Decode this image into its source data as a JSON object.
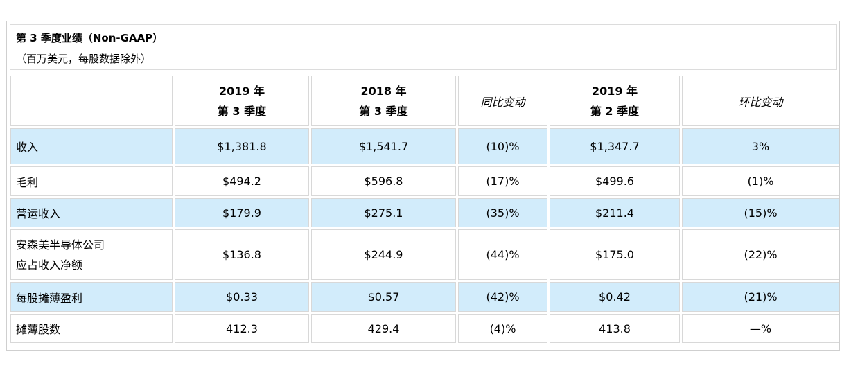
{
  "title": "第 3 季度业绩（Non-GAAP）",
  "subtitle": "（百万美元，每股数据除外）",
  "columns": [
    {
      "line1": "2019 年",
      "line2": "第 3 季度"
    },
    {
      "line1": "2018 年",
      "line2": "第 3 季度"
    },
    {
      "label": "同比变动"
    },
    {
      "line1": "2019 年",
      "line2": "第 2 季度"
    },
    {
      "label": "环比变动"
    }
  ],
  "rows": [
    {
      "label": "收入",
      "values": [
        "$1,381.8",
        "$1,541.7",
        "(10)%",
        "$1,347.7",
        "3%"
      ]
    },
    {
      "label": "毛利",
      "values": [
        "$494.2",
        "$596.8",
        "(17)%",
        "$499.6",
        "(1)%"
      ]
    },
    {
      "label": "营运收入",
      "values": [
        "$179.9",
        "$275.1",
        "(35)%",
        "$211.4",
        "(15)%"
      ]
    },
    {
      "label_line1": "安森美半导体公司",
      "label_line2": "应占收入净额",
      "values": [
        "$136.8",
        "$244.9",
        "(44)%",
        "$175.0",
        "(22)%"
      ]
    },
    {
      "label": "每股摊薄盈利",
      "values": [
        "$0.33",
        "$0.57",
        "(42)%",
        "$0.42",
        "(21)%"
      ]
    },
    {
      "label": "摊薄股数",
      "values": [
        "412.3",
        "429.4",
        "(4)%",
        "413.8",
        "—%"
      ]
    }
  ]
}
